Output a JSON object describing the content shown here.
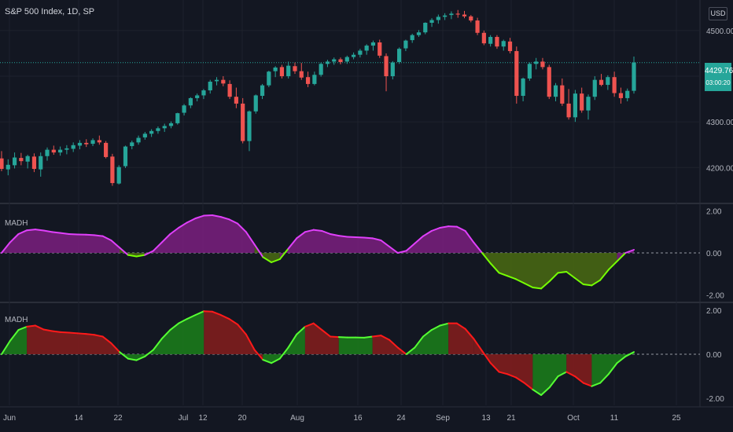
{
  "header": {
    "symbol": "S&P 500 Index, 1D, SP",
    "currency": "USD"
  },
  "last_price": {
    "value": "4429.76",
    "countdown": "03:00:20"
  },
  "colors": {
    "background": "#131722",
    "grid": "#1e222d",
    "up": "#26a69a",
    "down": "#ef5350",
    "magenta": "#e040fb",
    "magenta_fill": "#7b1f7f",
    "lime": "#76ff03",
    "lime_fill": "#4a6b12",
    "green_fill": "#1b7a1b",
    "red_fill": "#7f1d1d",
    "red_line": "#ff1a1a",
    "green_line": "#55ff33"
  },
  "chart_data": [
    {
      "type": "candlestick",
      "title": "S&P 500 Index, 1D, SP",
      "y_ticks": [
        "4500.00",
        "4300.00",
        "4200.00"
      ],
      "ylim": [
        4130,
        4560
      ],
      "last_price": 4429.76,
      "ohlc": [
        [
          4220,
          4236,
          4192,
          4197
        ],
        [
          4196,
          4218,
          4183,
          4206
        ],
        [
          4205,
          4233,
          4198,
          4222
        ],
        [
          4221,
          4232,
          4205,
          4214
        ],
        [
          4213,
          4228,
          4198,
          4225
        ],
        [
          4224,
          4231,
          4190,
          4197
        ],
        [
          4196,
          4233,
          4180,
          4225
        ],
        [
          4225,
          4244,
          4215,
          4239
        ],
        [
          4239,
          4248,
          4228,
          4233
        ],
        [
          4233,
          4246,
          4226,
          4239
        ],
        [
          4239,
          4249,
          4229,
          4242
        ],
        [
          4241,
          4255,
          4234,
          4249
        ],
        [
          4248,
          4260,
          4240,
          4254
        ],
        [
          4254,
          4262,
          4245,
          4251
        ],
        [
          4252,
          4264,
          4247,
          4260
        ],
        [
          4260,
          4270,
          4250,
          4255
        ],
        [
          4254,
          4258,
          4220,
          4223
        ],
        [
          4224,
          4230,
          4160,
          4166
        ],
        [
          4165,
          4205,
          4163,
          4201
        ],
        [
          4203,
          4248,
          4199,
          4246
        ],
        [
          4247,
          4259,
          4240,
          4255
        ],
        [
          4255,
          4270,
          4250,
          4265
        ],
        [
          4266,
          4278,
          4261,
          4274
        ],
        [
          4274,
          4284,
          4267,
          4280
        ],
        [
          4280,
          4290,
          4274,
          4286
        ],
        [
          4286,
          4296,
          4278,
          4291
        ],
        [
          4291,
          4301,
          4286,
          4297
        ],
        [
          4297,
          4320,
          4294,
          4319
        ],
        [
          4320,
          4339,
          4314,
          4336
        ],
        [
          4336,
          4354,
          4330,
          4352
        ],
        [
          4352,
          4362,
          4345,
          4358
        ],
        [
          4358,
          4372,
          4350,
          4369
        ],
        [
          4369,
          4392,
          4362,
          4388
        ],
        [
          4389,
          4398,
          4380,
          4392
        ],
        [
          4392,
          4400,
          4378,
          4384
        ],
        [
          4383,
          4391,
          4350,
          4355
        ],
        [
          4355,
          4375,
          4330,
          4340
        ],
        [
          4340,
          4352,
          4253,
          4258
        ],
        [
          4258,
          4325,
          4236,
          4323
        ],
        [
          4323,
          4360,
          4318,
          4358
        ],
        [
          4357,
          4383,
          4350,
          4380
        ],
        [
          4380,
          4412,
          4376,
          4410
        ],
        [
          4411,
          4422,
          4398,
          4419
        ],
        [
          4420,
          4425,
          4395,
          4400
        ],
        [
          4400,
          4432,
          4395,
          4423
        ],
        [
          4422,
          4430,
          4405,
          4411
        ],
        [
          4411,
          4429,
          4392,
          4397
        ],
        [
          4398,
          4410,
          4376,
          4383
        ],
        [
          4383,
          4410,
          4380,
          4403
        ],
        [
          4403,
          4430,
          4399,
          4427
        ],
        [
          4427,
          4436,
          4420,
          4432
        ],
        [
          4432,
          4441,
          4425,
          4437
        ],
        [
          4437,
          4441,
          4426,
          4431
        ],
        [
          4432,
          4445,
          4427,
          4442
        ],
        [
          4442,
          4452,
          4437,
          4447
        ],
        [
          4447,
          4460,
          4441,
          4456
        ],
        [
          4456,
          4470,
          4447,
          4467
        ],
        [
          4467,
          4478,
          4456,
          4474
        ],
        [
          4474,
          4480,
          4440,
          4445
        ],
        [
          4444,
          4450,
          4367,
          4400
        ],
        [
          4400,
          4433,
          4393,
          4430
        ],
        [
          4431,
          4463,
          4427,
          4460
        ],
        [
          4461,
          4480,
          4455,
          4478
        ],
        [
          4479,
          4493,
          4473,
          4490
        ],
        [
          4490,
          4501,
          4486,
          4496
        ],
        [
          4496,
          4518,
          4492,
          4517
        ],
        [
          4517,
          4527,
          4508,
          4523
        ],
        [
          4523,
          4535,
          4515,
          4530
        ],
        [
          4530,
          4538,
          4523,
          4533
        ],
        [
          4534,
          4542,
          4525,
          4537
        ],
        [
          4537,
          4545,
          4528,
          4535
        ],
        [
          4535,
          4543,
          4527,
          4531
        ],
        [
          4531,
          4534,
          4518,
          4522
        ],
        [
          4522,
          4528,
          4490,
          4495
        ],
        [
          4495,
          4500,
          4468,
          4472
        ],
        [
          4471,
          4490,
          4465,
          4486
        ],
        [
          4486,
          4490,
          4460,
          4465
        ],
        [
          4465,
          4480,
          4456,
          4477
        ],
        [
          4476,
          4484,
          4450,
          4455
        ],
        [
          4455,
          4465,
          4340,
          4357
        ],
        [
          4357,
          4397,
          4345,
          4395
        ],
        [
          4395,
          4430,
          4390,
          4427
        ],
        [
          4427,
          4440,
          4415,
          4432
        ],
        [
          4432,
          4440,
          4415,
          4420
        ],
        [
          4420,
          4425,
          4350,
          4355
        ],
        [
          4355,
          4385,
          4345,
          4380
        ],
        [
          4380,
          4395,
          4335,
          4340
        ],
        [
          4340,
          4372,
          4305,
          4310
        ],
        [
          4310,
          4370,
          4300,
          4362
        ],
        [
          4362,
          4375,
          4320,
          4325
        ],
        [
          4325,
          4360,
          4305,
          4355
        ],
        [
          4355,
          4400,
          4348,
          4392
        ],
        [
          4392,
          4405,
          4378,
          4381
        ],
        [
          4381,
          4402,
          4370,
          4398
        ],
        [
          4398,
          4410,
          4355,
          4363
        ],
        [
          4363,
          4375,
          4340,
          4352
        ],
        [
          4352,
          4373,
          4345,
          4368
        ],
        [
          4368,
          4443,
          4362,
          4430
        ]
      ]
    },
    {
      "type": "area",
      "title": "MADH",
      "y_ticks": [
        "2.00",
        "0.00",
        "-2.00"
      ],
      "ylim": [
        -2.1,
        2.1
      ],
      "above_color": "magenta",
      "below_color": "lime",
      "values": [
        0.0,
        0.5,
        0.9,
        1.08,
        1.12,
        1.07,
        1.0,
        0.95,
        0.9,
        0.88,
        0.87,
        0.85,
        0.8,
        0.6,
        0.25,
        -0.1,
        -0.17,
        -0.1,
        0.1,
        0.5,
        0.9,
        1.2,
        1.45,
        1.65,
        1.78,
        1.8,
        1.72,
        1.6,
        1.4,
        1.0,
        0.4,
        -0.2,
        -0.45,
        -0.3,
        0.2,
        0.7,
        1.0,
        1.1,
        1.05,
        0.9,
        0.82,
        0.77,
        0.75,
        0.73,
        0.7,
        0.6,
        0.3,
        0.0,
        0.1,
        0.45,
        0.8,
        1.05,
        1.2,
        1.27,
        1.25,
        1.05,
        0.5,
        0.0,
        -0.5,
        -0.95,
        -1.1,
        -1.25,
        -1.45,
        -1.65,
        -1.7,
        -1.35,
        -0.95,
        -0.9,
        -1.2,
        -1.5,
        -1.55,
        -1.3,
        -0.8,
        -0.4,
        0.0,
        0.15
      ]
    },
    {
      "type": "area",
      "title": "MADH",
      "y_ticks": [
        "2.00",
        "0.00",
        "-2.00"
      ],
      "ylim": [
        -2.1,
        2.1
      ],
      "values": [
        0.0,
        0.6,
        1.1,
        1.25,
        1.3,
        1.12,
        1.05,
        1.0,
        0.98,
        0.95,
        0.92,
        0.88,
        0.8,
        0.5,
        0.1,
        -0.2,
        -0.27,
        -0.1,
        0.2,
        0.7,
        1.1,
        1.4,
        1.6,
        1.78,
        1.95,
        1.93,
        1.78,
        1.6,
        1.35,
        0.9,
        0.2,
        -0.25,
        -0.4,
        -0.2,
        0.3,
        0.9,
        1.25,
        1.4,
        1.1,
        0.8,
        0.78,
        0.76,
        0.76,
        0.75,
        0.8,
        0.85,
        0.65,
        0.3,
        0.0,
        0.3,
        0.8,
        1.1,
        1.3,
        1.4,
        1.4,
        1.15,
        0.7,
        0.15,
        -0.4,
        -0.8,
        -0.9,
        -1.05,
        -1.3,
        -1.6,
        -1.85,
        -1.5,
        -1.0,
        -0.8,
        -1.0,
        -1.3,
        -1.45,
        -1.3,
        -0.9,
        -0.4,
        -0.1,
        0.1
      ],
      "segment_colors": [
        [
          "green",
          0,
          3
        ],
        [
          "red",
          3,
          14
        ],
        [
          "green",
          14,
          24
        ],
        [
          "red",
          24,
          31
        ],
        [
          "green",
          31,
          36
        ],
        [
          "red",
          36,
          40
        ],
        [
          "green",
          40,
          44
        ],
        [
          "red",
          44,
          48
        ],
        [
          "green",
          48,
          53
        ],
        [
          "red",
          53,
          56
        ],
        [
          "red",
          56,
          63
        ],
        [
          "green",
          63,
          67
        ],
        [
          "red",
          67,
          70
        ],
        [
          "green",
          70,
          75
        ]
      ]
    }
  ],
  "x_axis": {
    "ticks": [
      "Jun",
      "14",
      "22",
      "Jul",
      "12",
      "20",
      "Aug",
      "16",
      "24",
      "Sep",
      "13",
      "21",
      "Oct",
      "11",
      "25"
    ]
  }
}
